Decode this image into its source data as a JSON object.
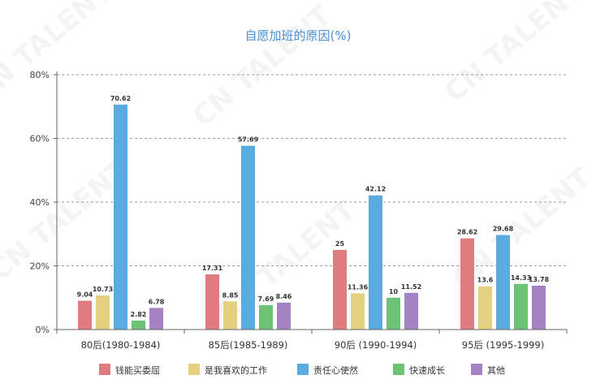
{
  "chart_data": {
    "type": "bar",
    "title": "自愿加班的原因(%)",
    "categories": [
      "80后(1980-1984)",
      "85后(1985-1989)",
      "90后 (1990-1994)",
      "95后 (1995-1999)"
    ],
    "series": [
      {
        "name": "钱能买委屈",
        "color": "#e07b80",
        "values": [
          9.04,
          17.31,
          25,
          28.62
        ],
        "labels": [
          "9.04",
          "17.31",
          "25",
          "28.62"
        ]
      },
      {
        "name": "是我喜欢的工作",
        "color": "#e4d07f",
        "values": [
          10.73,
          8.85,
          11.36,
          13.6
        ],
        "labels": [
          "10.73",
          "8.85",
          "11.36",
          "13.6"
        ]
      },
      {
        "name": "责任心使然",
        "color": "#5aabe0",
        "values": [
          70.62,
          57.69,
          42.12,
          29.68
        ],
        "labels": [
          "70.62",
          "57.69",
          "42.12",
          "29.68"
        ]
      },
      {
        "name": "快速成长",
        "color": "#6cc374",
        "values": [
          2.82,
          7.69,
          10,
          14.33
        ],
        "labels": [
          "2.82",
          "7.69",
          "10",
          "14.33"
        ]
      },
      {
        "name": "其他",
        "color": "#a582c2",
        "values": [
          6.78,
          8.46,
          11.52,
          13.78
        ],
        "labels": [
          "6.78",
          "8.46",
          "11.52",
          "13.78"
        ]
      }
    ],
    "yticks": [
      "0%",
      "20%",
      "40%",
      "60%",
      "80%"
    ],
    "ylim": [
      0,
      80
    ],
    "grid": true,
    "legend_position": "bottom",
    "watermark": "CN TALENT"
  }
}
